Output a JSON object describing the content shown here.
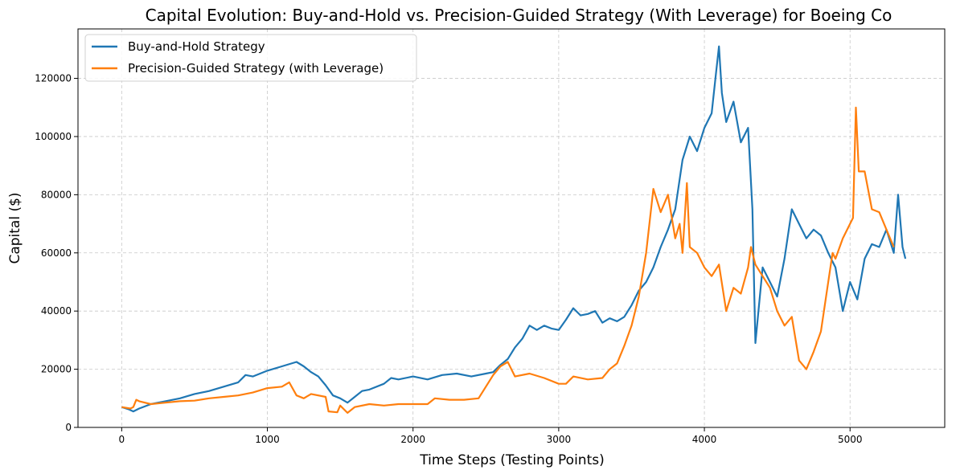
{
  "chart_data": {
    "type": "line",
    "title": "Capital Evolution: Buy-and-Hold vs. Precision-Guided Strategy (With Leverage) for Boeing Co",
    "xlabel": "Time Steps (Testing Points)",
    "ylabel": "Capital ($)",
    "xlim": [
      -300,
      5650
    ],
    "ylim": [
      0,
      137000
    ],
    "x_ticks": [
      0,
      1000,
      2000,
      3000,
      4000,
      5000
    ],
    "y_ticks": [
      0,
      20000,
      40000,
      60000,
      80000,
      100000,
      120000
    ],
    "grid": true,
    "legend_position": "upper-left",
    "series": [
      {
        "name": "Buy-and-Hold Strategy",
        "color": "#1f77b4",
        "points": [
          [
            0,
            7000
          ],
          [
            50,
            6200
          ],
          [
            80,
            5500
          ],
          [
            120,
            6500
          ],
          [
            200,
            8000
          ],
          [
            300,
            9000
          ],
          [
            400,
            10000
          ],
          [
            500,
            11500
          ],
          [
            600,
            12500
          ],
          [
            700,
            14000
          ],
          [
            800,
            15500
          ],
          [
            850,
            18000
          ],
          [
            900,
            17500
          ],
          [
            950,
            18500
          ],
          [
            1000,
            19500
          ],
          [
            1100,
            21000
          ],
          [
            1200,
            22500
          ],
          [
            1250,
            21000
          ],
          [
            1300,
            19000
          ],
          [
            1350,
            17500
          ],
          [
            1400,
            14500
          ],
          [
            1450,
            11000
          ],
          [
            1500,
            10000
          ],
          [
            1550,
            8500
          ],
          [
            1600,
            10500
          ],
          [
            1650,
            12500
          ],
          [
            1700,
            13000
          ],
          [
            1800,
            15000
          ],
          [
            1850,
            17000
          ],
          [
            1900,
            16500
          ],
          [
            2000,
            17500
          ],
          [
            2100,
            16500
          ],
          [
            2200,
            18000
          ],
          [
            2300,
            18500
          ],
          [
            2400,
            17500
          ],
          [
            2500,
            18500
          ],
          [
            2550,
            19000
          ],
          [
            2600,
            21500
          ],
          [
            2650,
            23500
          ],
          [
            2700,
            27500
          ],
          [
            2750,
            30500
          ],
          [
            2800,
            35000
          ],
          [
            2850,
            33500
          ],
          [
            2900,
            35000
          ],
          [
            2950,
            34000
          ],
          [
            3000,
            33500
          ],
          [
            3050,
            37000
          ],
          [
            3100,
            41000
          ],
          [
            3150,
            38500
          ],
          [
            3200,
            39000
          ],
          [
            3250,
            40000
          ],
          [
            3300,
            36000
          ],
          [
            3350,
            37500
          ],
          [
            3400,
            36500
          ],
          [
            3450,
            38000
          ],
          [
            3500,
            42000
          ],
          [
            3550,
            47000
          ],
          [
            3600,
            50000
          ],
          [
            3650,
            55000
          ],
          [
            3700,
            62000
          ],
          [
            3750,
            68000
          ],
          [
            3800,
            75000
          ],
          [
            3850,
            92000
          ],
          [
            3900,
            100000
          ],
          [
            3950,
            95000
          ],
          [
            4000,
            103000
          ],
          [
            4050,
            108000
          ],
          [
            4080,
            122000
          ],
          [
            4100,
            131000
          ],
          [
            4120,
            115000
          ],
          [
            4150,
            105000
          ],
          [
            4200,
            112000
          ],
          [
            4250,
            98000
          ],
          [
            4300,
            103000
          ],
          [
            4330,
            75000
          ],
          [
            4350,
            29000
          ],
          [
            4400,
            55000
          ],
          [
            4450,
            50000
          ],
          [
            4500,
            45000
          ],
          [
            4550,
            58000
          ],
          [
            4600,
            75000
          ],
          [
            4650,
            70000
          ],
          [
            4700,
            65000
          ],
          [
            4750,
            68000
          ],
          [
            4800,
            66000
          ],
          [
            4850,
            60000
          ],
          [
            4900,
            55000
          ],
          [
            4950,
            40000
          ],
          [
            5000,
            50000
          ],
          [
            5050,
            44000
          ],
          [
            5100,
            58000
          ],
          [
            5150,
            63000
          ],
          [
            5200,
            62000
          ],
          [
            5250,
            68000
          ],
          [
            5300,
            60000
          ],
          [
            5330,
            80000
          ],
          [
            5360,
            62000
          ],
          [
            5380,
            58000
          ]
        ]
      },
      {
        "name": "Precision-Guided Strategy (with Leverage)",
        "color": "#ff7f0e",
        "points": [
          [
            0,
            7000
          ],
          [
            60,
            6500
          ],
          [
            80,
            7000
          ],
          [
            100,
            9500
          ],
          [
            120,
            9000
          ],
          [
            200,
            8000
          ],
          [
            300,
            8500
          ],
          [
            400,
            9000
          ],
          [
            500,
            9200
          ],
          [
            600,
            10000
          ],
          [
            700,
            10500
          ],
          [
            800,
            11000
          ],
          [
            900,
            12000
          ],
          [
            1000,
            13500
          ],
          [
            1100,
            14000
          ],
          [
            1150,
            15500
          ],
          [
            1200,
            11000
          ],
          [
            1250,
            10000
          ],
          [
            1300,
            11500
          ],
          [
            1400,
            10500
          ],
          [
            1420,
            5500
          ],
          [
            1480,
            5200
          ],
          [
            1500,
            7500
          ],
          [
            1550,
            5000
          ],
          [
            1600,
            7000
          ],
          [
            1700,
            8000
          ],
          [
            1800,
            7500
          ],
          [
            1900,
            8000
          ],
          [
            2000,
            8000
          ],
          [
            2100,
            8000
          ],
          [
            2150,
            10000
          ],
          [
            2250,
            9500
          ],
          [
            2350,
            9500
          ],
          [
            2450,
            10000
          ],
          [
            2500,
            14000
          ],
          [
            2550,
            18000
          ],
          [
            2600,
            21000
          ],
          [
            2650,
            22500
          ],
          [
            2700,
            17500
          ],
          [
            2800,
            18500
          ],
          [
            2900,
            17000
          ],
          [
            3000,
            15000
          ],
          [
            3050,
            15000
          ],
          [
            3100,
            17500
          ],
          [
            3200,
            16500
          ],
          [
            3300,
            17000
          ],
          [
            3350,
            20000
          ],
          [
            3400,
            22000
          ],
          [
            3450,
            28000
          ],
          [
            3500,
            35000
          ],
          [
            3550,
            45000
          ],
          [
            3600,
            60000
          ],
          [
            3650,
            82000
          ],
          [
            3700,
            74000
          ],
          [
            3750,
            80000
          ],
          [
            3800,
            65000
          ],
          [
            3830,
            70000
          ],
          [
            3850,
            60000
          ],
          [
            3880,
            84000
          ],
          [
            3900,
            62000
          ],
          [
            3950,
            60000
          ],
          [
            4000,
            55000
          ],
          [
            4050,
            52000
          ],
          [
            4100,
            56000
          ],
          [
            4150,
            40000
          ],
          [
            4200,
            48000
          ],
          [
            4250,
            46000
          ],
          [
            4300,
            55000
          ],
          [
            4320,
            62000
          ],
          [
            4350,
            56000
          ],
          [
            4400,
            52000
          ],
          [
            4450,
            48000
          ],
          [
            4500,
            40000
          ],
          [
            4550,
            35000
          ],
          [
            4600,
            38000
          ],
          [
            4650,
            23000
          ],
          [
            4700,
            20000
          ],
          [
            4750,
            26000
          ],
          [
            4800,
            33000
          ],
          [
            4850,
            50000
          ],
          [
            4880,
            60000
          ],
          [
            4900,
            58000
          ],
          [
            4950,
            65000
          ],
          [
            5000,
            70000
          ],
          [
            5020,
            72000
          ],
          [
            5040,
            110000
          ],
          [
            5060,
            88000
          ],
          [
            5100,
            88000
          ],
          [
            5150,
            75000
          ],
          [
            5200,
            74000
          ],
          [
            5250,
            68000
          ],
          [
            5300,
            62000
          ]
        ]
      }
    ]
  }
}
